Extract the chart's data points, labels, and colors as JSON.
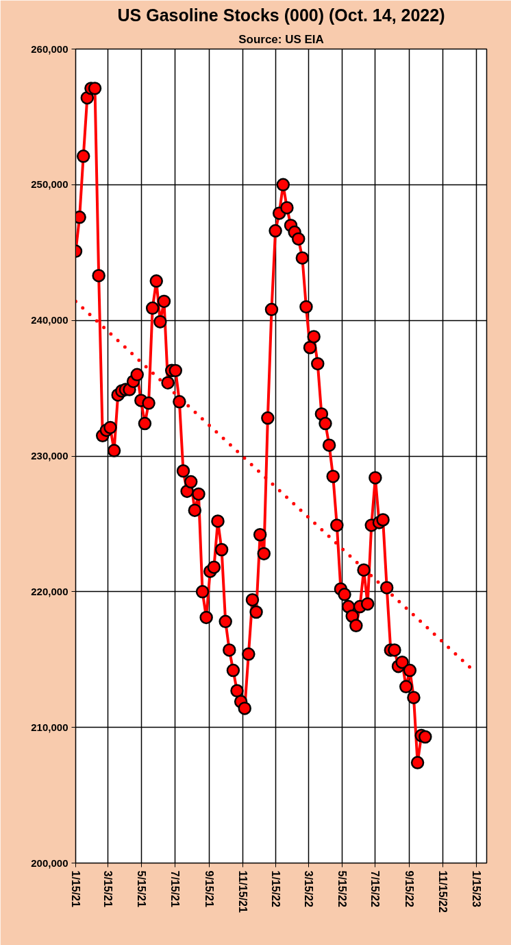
{
  "chart_data": {
    "type": "line",
    "title": "US Gasoline Stocks (000) (Oct. 14, 2022)",
    "annotations": [
      "Source: US EIA"
    ],
    "xlim": [
      "2021-01-15",
      "2023-02-03"
    ],
    "xticks": [
      {
        "value": "2021-01-15",
        "label": "1/15/21"
      },
      {
        "value": "2021-03-15",
        "label": "3/15/21"
      },
      {
        "value": "2021-05-15",
        "label": "5/15/21"
      },
      {
        "value": "2021-07-15",
        "label": "7/15/21"
      },
      {
        "value": "2021-09-15",
        "label": "9/15/21"
      },
      {
        "value": "2021-11-15",
        "label": "11/15/21"
      },
      {
        "value": "2022-01-15",
        "label": "1/15/22"
      },
      {
        "value": "2022-03-15",
        "label": "3/15/22"
      },
      {
        "value": "2022-05-15",
        "label": "5/15/22"
      },
      {
        "value": "2022-07-15",
        "label": "7/15/22"
      },
      {
        "value": "2022-09-15",
        "label": "9/15/22"
      },
      {
        "value": "2022-11-15",
        "label": "11/15/22"
      },
      {
        "value": "2023-01-15",
        "label": "1/15/23"
      }
    ],
    "ylim": [
      200000,
      260000
    ],
    "yticks": [
      {
        "value": 200000,
        "label": "200,000"
      },
      {
        "value": 210000,
        "label": "210,000"
      },
      {
        "value": 220000,
        "label": "220,000"
      },
      {
        "value": 230000,
        "label": "230,000"
      },
      {
        "value": 240000,
        "label": "240,000"
      },
      {
        "value": 250000,
        "label": "250,000"
      },
      {
        "value": 260000,
        "label": "260,000"
      }
    ],
    "grid": true,
    "series": [
      {
        "color": "#ff0000",
        "marker": "circle",
        "line_style": "solid",
        "x": [
          "2021-01-15",
          "2021-01-22",
          "2021-01-29",
          "2021-02-05",
          "2021-02-12",
          "2021-02-19",
          "2021-02-26",
          "2021-03-05",
          "2021-03-12",
          "2021-03-19",
          "2021-03-26",
          "2021-04-02",
          "2021-04-09",
          "2021-04-16",
          "2021-04-23",
          "2021-04-30",
          "2021-05-07",
          "2021-05-14",
          "2021-05-21",
          "2021-05-28",
          "2021-06-04",
          "2021-06-11",
          "2021-06-18",
          "2021-06-25",
          "2021-07-02",
          "2021-07-09",
          "2021-07-16",
          "2021-07-23",
          "2021-07-30",
          "2021-08-06",
          "2021-08-13",
          "2021-08-20",
          "2021-08-27",
          "2021-09-03",
          "2021-09-10",
          "2021-09-17",
          "2021-09-24",
          "2021-10-01",
          "2021-10-08",
          "2021-10-15",
          "2021-10-22",
          "2021-10-29",
          "2021-11-05",
          "2021-11-12",
          "2021-11-19",
          "2021-11-26",
          "2021-12-03",
          "2021-12-10",
          "2021-12-17",
          "2021-12-24",
          "2021-12-31",
          "2022-01-07",
          "2022-01-14",
          "2022-01-21",
          "2022-01-28",
          "2022-02-04",
          "2022-02-11",
          "2022-02-18",
          "2022-02-25",
          "2022-03-04",
          "2022-03-11",
          "2022-03-18",
          "2022-03-25",
          "2022-04-01",
          "2022-04-08",
          "2022-04-15",
          "2022-04-22",
          "2022-04-29",
          "2022-05-06",
          "2022-05-13",
          "2022-05-20",
          "2022-05-27",
          "2022-06-03",
          "2022-06-10",
          "2022-06-17",
          "2022-06-24",
          "2022-07-01",
          "2022-07-08",
          "2022-07-15",
          "2022-07-22",
          "2022-07-29",
          "2022-08-05",
          "2022-08-12",
          "2022-08-19",
          "2022-08-26",
          "2022-09-02",
          "2022-09-09",
          "2022-09-16",
          "2022-09-23",
          "2022-09-30",
          "2022-10-07",
          "2022-10-14"
        ],
        "values": [
          245100,
          247600,
          252100,
          256400,
          257100,
          257100,
          243300,
          231500,
          231900,
          232100,
          230400,
          234500,
          234800,
          234900,
          234900,
          235500,
          236000,
          234100,
          232400,
          233900,
          240900,
          242900,
          239900,
          241400,
          235400,
          236300,
          236300,
          234000,
          228900,
          227400,
          228100,
          226000,
          227200,
          220000,
          218100,
          221500,
          221800,
          225200,
          223100,
          217800,
          215700,
          214200,
          212700,
          211900,
          211400,
          215400,
          219400,
          218500,
          224200,
          222800,
          232800,
          240800,
          246600,
          247900,
          250000,
          248300,
          247000,
          246500,
          246000,
          244600,
          241000,
          238000,
          238800,
          236800,
          233100,
          232400,
          230800,
          228500,
          224900,
          220200,
          219800,
          218900,
          218200,
          217500,
          218900,
          221600,
          219100,
          224900,
          228400,
          225100,
          225300,
          220300,
          215700,
          215700,
          214500,
          214800,
          213000,
          214200,
          212200,
          207400,
          209400,
          209300
        ]
      },
      {
        "color": "#ff0000",
        "marker": "none",
        "line_style": "dotted",
        "x": [
          "2021-01-15",
          "2023-01-15"
        ],
        "values": [
          241400,
          214000
        ]
      }
    ]
  }
}
